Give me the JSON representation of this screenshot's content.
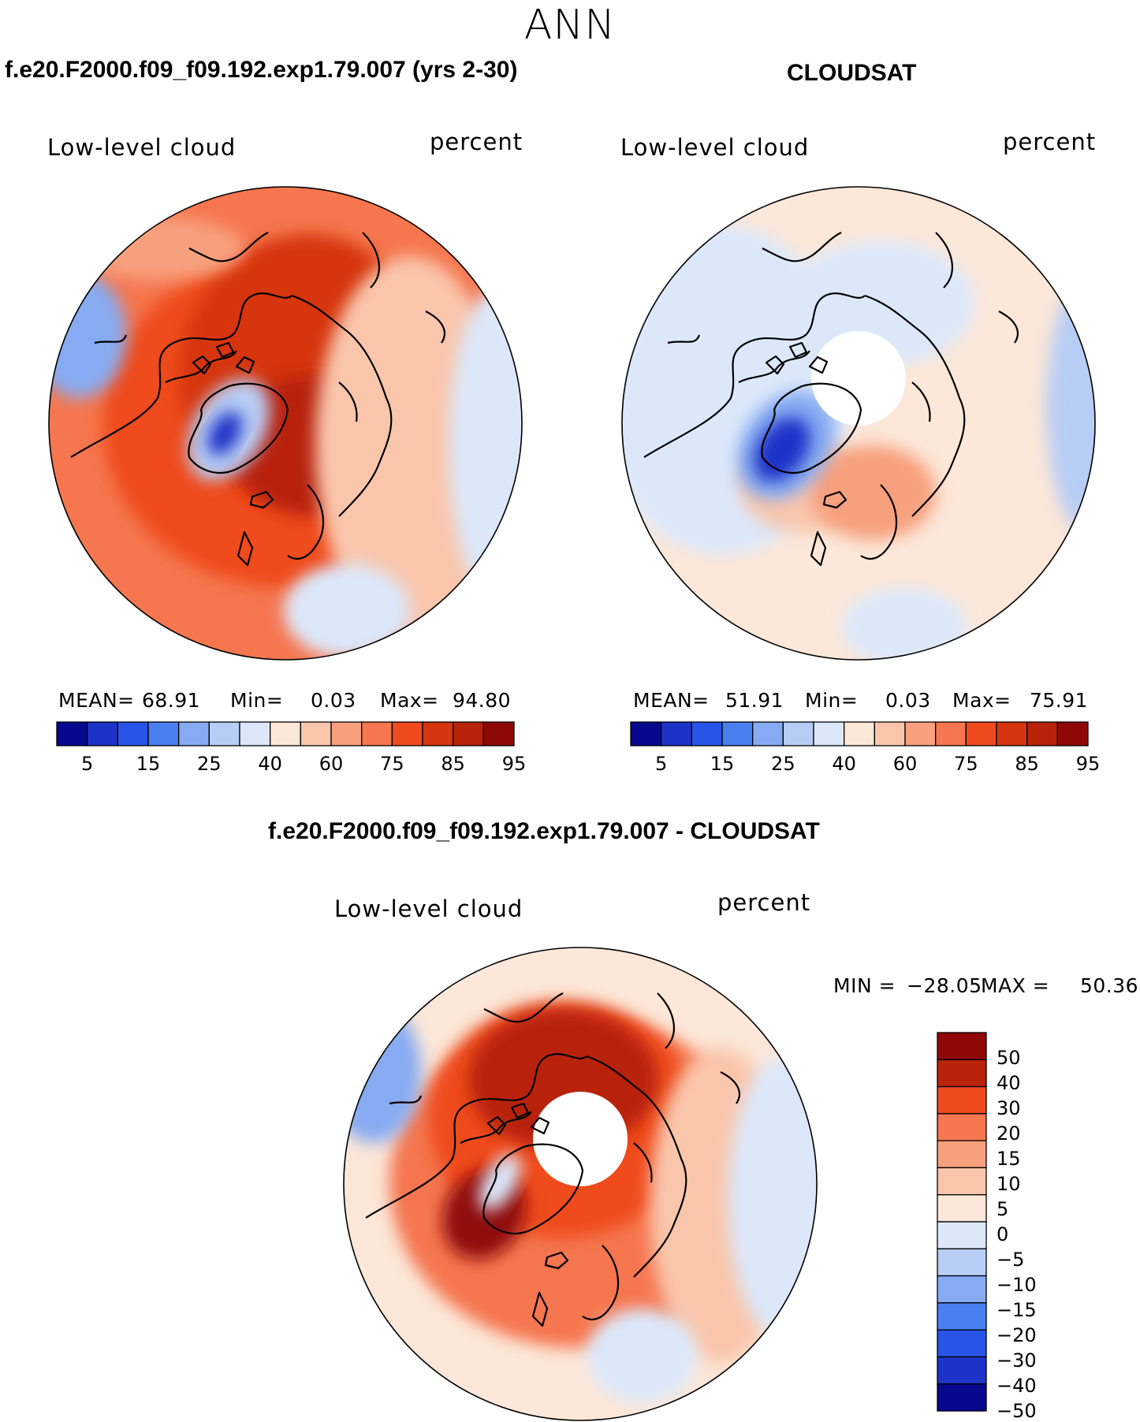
{
  "page": {
    "season": "ANN"
  },
  "colors": {
    "seq": [
      "#08088f",
      "#1d33c8",
      "#2855e8",
      "#4a7ff0",
      "#86abf2",
      "#b8cdf5",
      "#dce8fa",
      "#fce7d8",
      "#f9c6ac",
      "#f7a07e",
      "#f5764f",
      "#ef4b1f",
      "#d6360f",
      "#b8230a",
      "#8f0808"
    ],
    "diff": [
      "#08088f",
      "#1d33c8",
      "#2855e8",
      "#4a7ff0",
      "#86abf2",
      "#b8cdf5",
      "#dce8fa",
      "#fce7d8",
      "#f9c6ac",
      "#f7a07e",
      "#f5764f",
      "#ef4b1f",
      "#b8230a",
      "#8f0808"
    ],
    "land": "#000000"
  },
  "chart_data": [
    {
      "type": "heatmap",
      "panel": "model",
      "title": "f.e20.F2000.f09_f09.192.exp1.79.007 (yrs 2-30)",
      "variable": "Low-level cloud",
      "units": "percent",
      "mean_label": "MEAN=",
      "mean": "68.91",
      "min_label": "Min=",
      "min": "0.03",
      "max_label": "Max=",
      "max": "94.80",
      "colorbar_levels": [
        5,
        10,
        15,
        20,
        25,
        30,
        40,
        50,
        60,
        65,
        75,
        80,
        85,
        90,
        95
      ],
      "colorbar_tick_labels": [
        "5",
        "15",
        "25",
        "40",
        "60",
        "75",
        "85",
        "95"
      ]
    },
    {
      "type": "heatmap",
      "panel": "obs",
      "title": "CLOUDSAT",
      "variable": "Low-level cloud",
      "units": "percent",
      "mean_label": "MEAN=",
      "mean": "51.91",
      "min_label": "Min=",
      "min": "0.03",
      "max_label": "Max=",
      "max": "75.91",
      "colorbar_levels": [
        5,
        10,
        15,
        20,
        25,
        30,
        40,
        50,
        60,
        65,
        75,
        80,
        85,
        90,
        95
      ],
      "colorbar_tick_labels": [
        "5",
        "15",
        "25",
        "40",
        "60",
        "75",
        "85",
        "95"
      ]
    },
    {
      "type": "heatmap",
      "panel": "difference",
      "title": "f.e20.F2000.f09_f09.192.exp1.79.007 - CLOUDSAT",
      "variable": "Low-level cloud",
      "units": "percent",
      "min_label": "MIN =",
      "min": "−28.05",
      "max_label": "MAX =",
      "max": "50.36",
      "colorbar_tick_labels": [
        "50",
        "40",
        "30",
        "20",
        "15",
        "10",
        "5",
        "0",
        "−5",
        "−10",
        "−15",
        "−20",
        "−30",
        "−40",
        "−50"
      ]
    }
  ]
}
